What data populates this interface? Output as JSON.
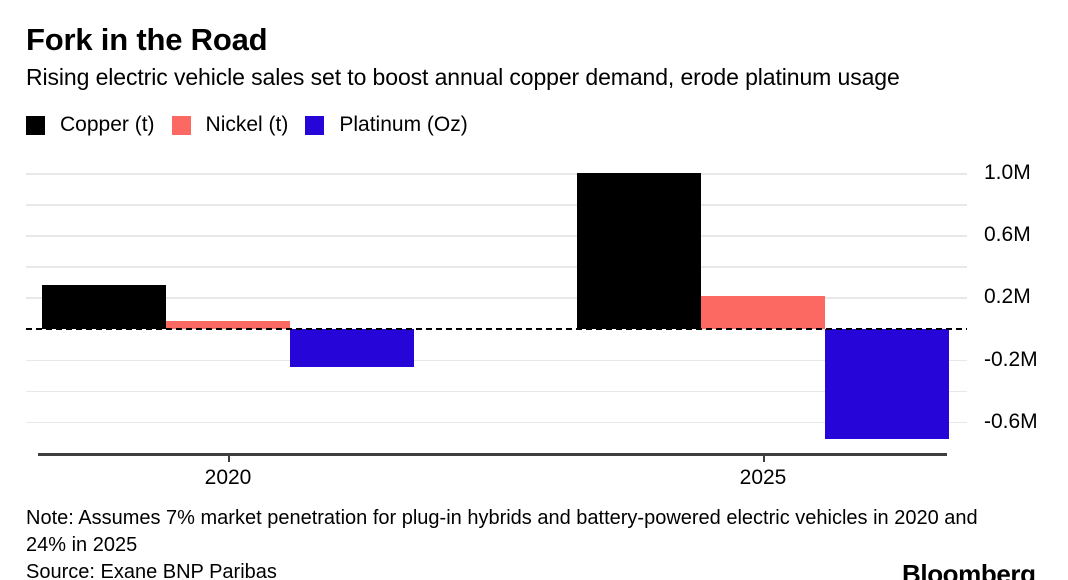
{
  "header": {
    "title": "Fork in the Road",
    "subtitle": "Rising electric vehicle sales set to boost annual copper demand, erode platinum usage"
  },
  "chart_data": {
    "type": "bar",
    "categories": [
      "2020",
      "2025"
    ],
    "series": [
      {
        "name": "Copper (t)",
        "color": "#000000",
        "values": [
          0.28,
          1.0
        ]
      },
      {
        "name": "Nickel (t)",
        "color": "#fb6962",
        "values": [
          0.05,
          0.21
        ]
      },
      {
        "name": "Platinum (Oz)",
        "color": "#2605d8",
        "values": [
          -0.25,
          -0.71
        ]
      }
    ],
    "unit": "M",
    "ylim": [
      -0.8,
      1.0
    ],
    "grid_step": 0.2,
    "grid": true,
    "zero_line": "dashed",
    "legend_position": "top",
    "yticks": [
      {
        "value": 1.0,
        "label": "1.0M"
      },
      {
        "value": 0.6,
        "label": "0.6M"
      },
      {
        "value": 0.2,
        "label": "0.2M"
      },
      {
        "value": -0.2,
        "label": "-0.2M"
      },
      {
        "value": -0.6,
        "label": "-0.6M"
      }
    ]
  },
  "footer": {
    "note_lines": [
      "Note: Assumes 7% market penetration for plug-in hybrids and battery-powered electric vehicles in 2020 and",
      "24% in 2025"
    ],
    "source": "Source: Exane BNP Paribas",
    "brand": "Bloomberg"
  }
}
